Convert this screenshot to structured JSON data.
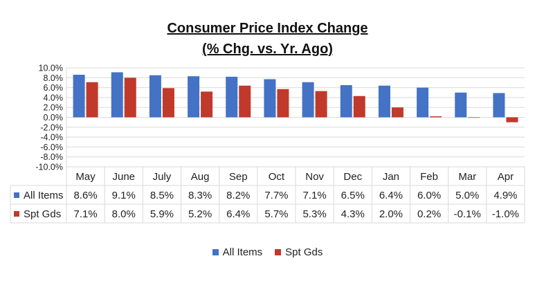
{
  "chart_data": {
    "type": "bar",
    "title": "Consumer Price Index Change",
    "subtitle": "(% Chg. vs. Yr. Ago)",
    "categories": [
      "May",
      "June",
      "July",
      "Aug",
      "Sep",
      "Oct",
      "Nov",
      "Dec",
      "Jan",
      "Feb",
      "Mar",
      "Apr"
    ],
    "series": [
      {
        "name": "All Items",
        "color": "#4472C4",
        "values": [
          8.6,
          9.1,
          8.5,
          8.3,
          8.2,
          7.7,
          7.1,
          6.5,
          6.4,
          6.0,
          5.0,
          4.9
        ],
        "labels": [
          "8.6%",
          "9.1%",
          "8.5%",
          "8.3%",
          "8.2%",
          "7.7%",
          "7.1%",
          "6.5%",
          "6.4%",
          "6.0%",
          "5.0%",
          "4.9%"
        ]
      },
      {
        "name": "Spt Gds",
        "color": "#C0392B",
        "values": [
          7.1,
          8.0,
          5.9,
          5.2,
          6.4,
          5.7,
          5.3,
          4.3,
          2.0,
          0.2,
          -0.1,
          -1.0
        ],
        "labels": [
          "7.1%",
          "8.0%",
          "5.9%",
          "5.2%",
          "6.4%",
          "5.7%",
          "5.3%",
          "4.3%",
          "2.0%",
          "0.2%",
          "-0.1%",
          "-1.0%"
        ]
      }
    ],
    "ylim": [
      -10,
      10
    ],
    "yticks": [
      "10.0%",
      "8.0%",
      "6.0%",
      "4.0%",
      "2.0%",
      "0.0%",
      "-2.0%",
      "-4.0%",
      "-6.0%",
      "-8.0%",
      "-10.0%"
    ],
    "grid": true,
    "data_table": true,
    "legend_position": "bottom"
  }
}
